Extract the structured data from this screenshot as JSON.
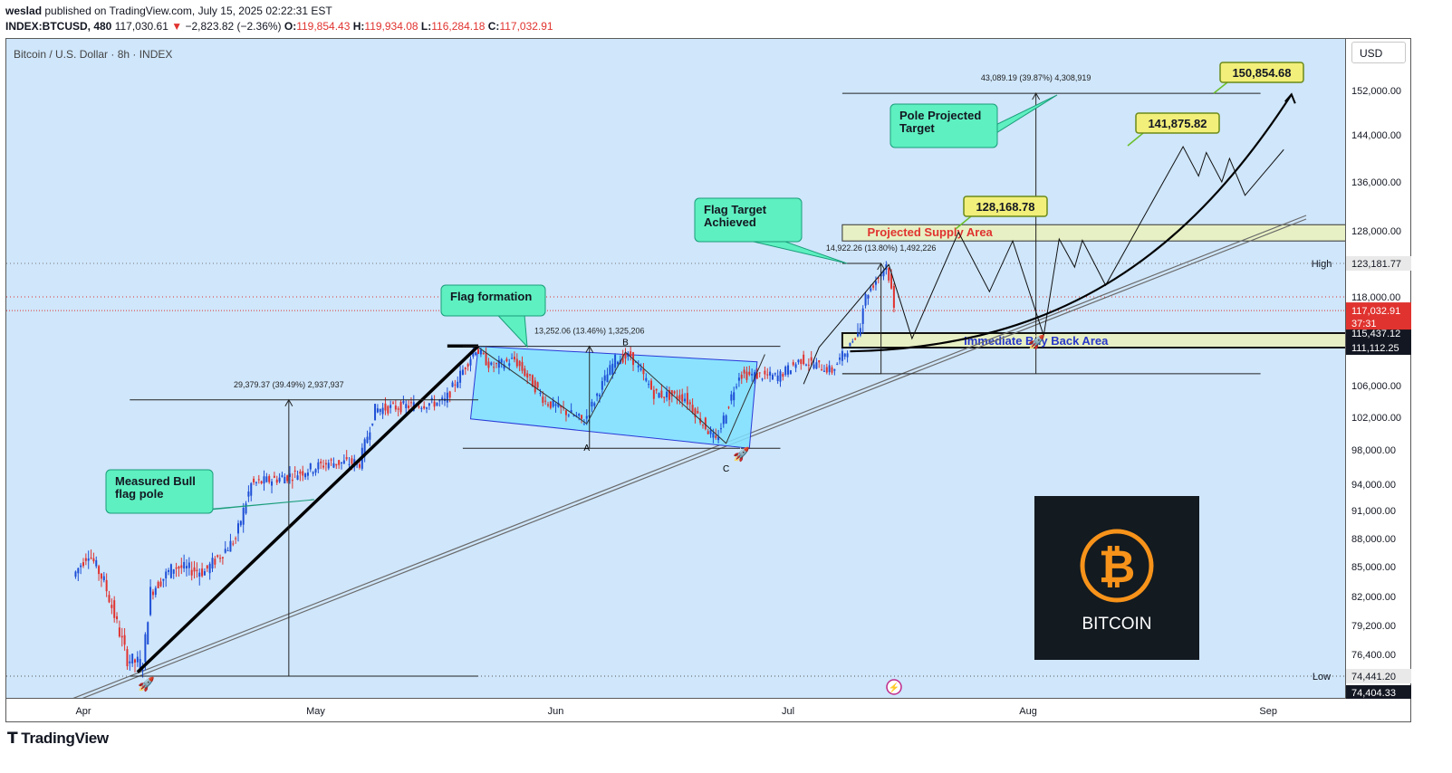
{
  "header": {
    "author": "weslad",
    "published_text": "published on TradingView.com, July 15, 2025 02:22:31 EST",
    "symbol_line": "INDEX:BTCUSD, 480",
    "last": "117,030.61",
    "arrow": "▼",
    "change": "−2,823.82 (−2.36%)",
    "o_label": "O:",
    "o_value": "119,854.43",
    "h_label": "H:",
    "h_value": "119,934.08",
    "l_label": "L:",
    "l_value": "116,284.18",
    "c_label": "C:",
    "c_value": "117,032.91"
  },
  "chart_title": "Bitcoin / U.S. Dollar · 8h · INDEX",
  "currency_button": "USD",
  "footer_brand": "TradingView",
  "colors": {
    "background": "#cfe6fb",
    "up": "#1e4fd6",
    "down": "#e0332f",
    "callout": "#5ef0c0",
    "target_box": "#f2ef7a",
    "flag_box": "#7fe0ff",
    "zone": "#e7f0c4"
  },
  "chart_data": {
    "type": "candlestick",
    "title": "Bitcoin / U.S. Dollar · 8h · INDEX",
    "x_ticks": [
      "Apr",
      "May",
      "Jun",
      "Jul",
      "Aug",
      "Sep"
    ],
    "y_ticks": [
      "152,000.00",
      "144,000.00",
      "136,000.00",
      "128,000.00",
      "123,181.77",
      "118,000.00",
      "115,437.12",
      "111,112.25",
      "106,000.00",
      "102,000.00",
      "98,000.00",
      "94,000.00",
      "91,000.00",
      "88,000.00",
      "85,000.00",
      "82,000.00",
      "79,200.00",
      "76,400.00",
      "74,441.20",
      "74,404.33"
    ],
    "ylim": [
      72000,
      158000
    ],
    "price_path": [
      [
        "2025-03-31",
        84000
      ],
      [
        "2025-04-02",
        86500
      ],
      [
        "2025-04-04",
        83500
      ],
      [
        "2025-04-07",
        76000
      ],
      [
        "2025-04-09",
        75500
      ],
      [
        "2025-04-10",
        82500
      ],
      [
        "2025-04-13",
        85000
      ],
      [
        "2025-04-17",
        84500
      ],
      [
        "2025-04-21",
        88000
      ],
      [
        "2025-04-23",
        94000
      ],
      [
        "2025-04-28",
        95000
      ],
      [
        "2025-05-03",
        96500
      ],
      [
        "2025-05-07",
        96500
      ],
      [
        "2025-05-09",
        103000
      ],
      [
        "2025-05-14",
        103500
      ],
      [
        "2025-05-18",
        104000
      ],
      [
        "2025-05-22",
        111000
      ],
      [
        "2025-05-24",
        108500
      ],
      [
        "2025-05-27",
        109500
      ],
      [
        "2025-05-31",
        104000
      ],
      [
        "2025-06-05",
        101500
      ],
      [
        "2025-06-09",
        109500
      ],
      [
        "2025-06-11",
        110000
      ],
      [
        "2025-06-14",
        105000
      ],
      [
        "2025-06-18",
        104500
      ],
      [
        "2025-06-22",
        99000
      ],
      [
        "2025-06-25",
        107500
      ],
      [
        "2025-06-30",
        107200
      ],
      [
        "2025-07-03",
        109500
      ],
      [
        "2025-07-07",
        108000
      ],
      [
        "2025-07-09",
        111000
      ],
      [
        "2025-07-11",
        117500
      ],
      [
        "2025-07-14",
        123000
      ],
      [
        "2025-07-15",
        117032.91
      ]
    ],
    "last_price": "117,032.91",
    "countdown": "37:31",
    "levels": {
      "high": "123,181.77",
      "low": "74,441.20",
      "buy_back_top": "115,437.12",
      "buy_back_bottom": "111,112.25",
      "last_low": "74,404.33"
    },
    "high_label": "High",
    "low_label": "Low",
    "measurements": [
      {
        "text": "29,379.37 (39.49%) 2,937,937"
      },
      {
        "text": "13,252.06 (13.46%) 1,325,206"
      },
      {
        "text": "14,922.26 (13.80%) 1,492,226"
      },
      {
        "text": "43,089.19 (39.87%) 4,308,919"
      }
    ],
    "pattern_labels": [
      "B",
      "A",
      "C"
    ],
    "callouts": [
      {
        "text_lines": [
          "Measured Bull",
          "flag pole"
        ]
      },
      {
        "text_lines": [
          "Flag formation"
        ]
      },
      {
        "text_lines": [
          "Flag Target",
          "Achieved"
        ]
      },
      {
        "text_lines": [
          "Pole Projected",
          "Target"
        ]
      }
    ],
    "targets": [
      "128,168.78",
      "141,875.82",
      "150,854.68"
    ],
    "zones": [
      "Projected Supply Area",
      "Immediate Buy Back Area"
    ],
    "logo_text": "BITCOIN"
  }
}
